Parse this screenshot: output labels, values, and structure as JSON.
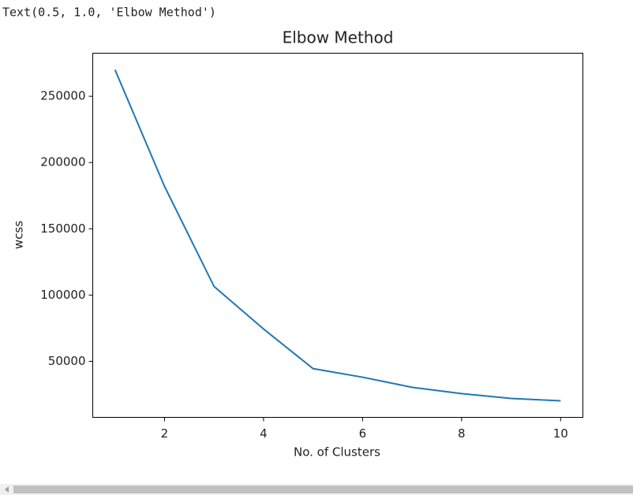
{
  "output_text": "Text(0.5, 1.0, 'Elbow Method')",
  "chart_data": {
    "type": "line",
    "title": "Elbow Method",
    "x_label": "No. of Clusters",
    "y_label": "wcss",
    "x": [
      1,
      2,
      3,
      4,
      5,
      6,
      7,
      8,
      9,
      10
    ],
    "series": [
      {
        "name": "wcss",
        "color": "#1f77b4",
        "values": [
          270000,
          182000,
          106500,
          74400,
          44500,
          38000,
          30400,
          25600,
          22000,
          20200
        ]
      }
    ],
    "xlim": [
      0.55,
      10.45
    ],
    "xticks": [
      2,
      4,
      6,
      8,
      10
    ],
    "ylim": [
      7710,
      282490
    ],
    "yticks": [
      50000,
      100000,
      150000,
      200000,
      250000
    ],
    "grid": false
  }
}
